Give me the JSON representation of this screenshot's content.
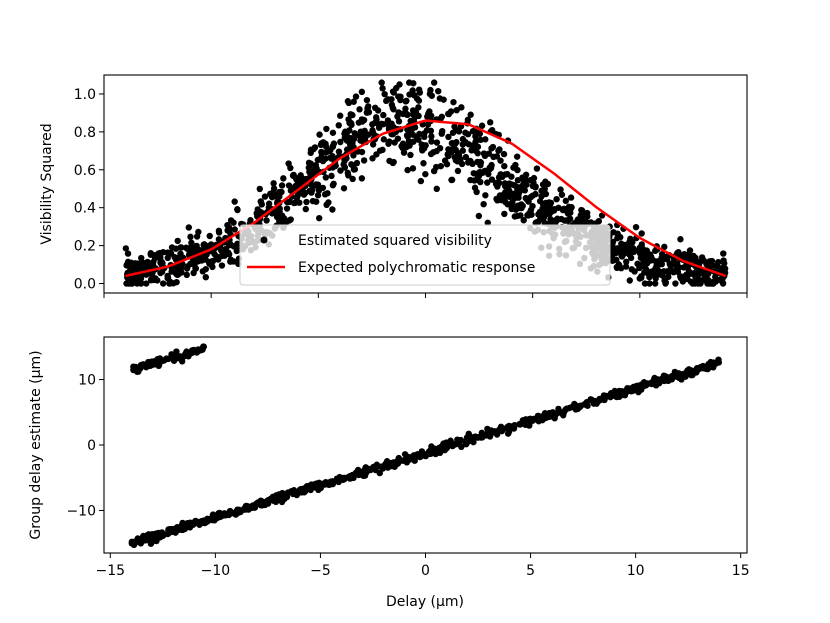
{
  "chart_data": [
    {
      "type": "scatter",
      "xlabel": "",
      "ylabel": "Visibility Squared",
      "xlim": [
        -15,
        15
      ],
      "ylim": [
        -0.05,
        1.1
      ],
      "xticks": [
        -15,
        -10,
        -5,
        0,
        5,
        10,
        15
      ],
      "yticks": [
        "0.0",
        "0.2",
        "0.4",
        "0.6",
        "0.8",
        "1.0"
      ],
      "x_tick_labels_shown": false,
      "grid": false,
      "legend": {
        "placement": "lower-center",
        "entries": [
          {
            "label": "Estimated squared visibility",
            "marker": "dot",
            "color": "#000000"
          },
          {
            "label": "Expected polychromatic response",
            "marker": "line",
            "color": "#ff0000"
          }
        ]
      },
      "series": [
        {
          "kind": "scatter",
          "color": "#000000",
          "x_range": [
            -14,
            14
          ],
          "count": 1400,
          "trend_x": [
            -14,
            -12,
            -10,
            -8,
            -6,
            -4,
            -3,
            -2,
            -1,
            0,
            1,
            2,
            3,
            4,
            6,
            8,
            10,
            12,
            14
          ],
          "trend_y": [
            0.05,
            0.09,
            0.16,
            0.28,
            0.48,
            0.67,
            0.76,
            0.83,
            0.84,
            0.83,
            0.77,
            0.7,
            0.6,
            0.52,
            0.35,
            0.22,
            0.13,
            0.08,
            0.05
          ],
          "spread": 0.09
        },
        {
          "kind": "line",
          "color": "#ff0000",
          "x": [
            -14,
            -12,
            -10,
            -8,
            -6,
            -4,
            -2,
            0,
            2,
            4,
            6,
            8,
            10,
            12,
            14
          ],
          "y": [
            0.04,
            0.09,
            0.18,
            0.32,
            0.49,
            0.66,
            0.79,
            0.86,
            0.84,
            0.74,
            0.58,
            0.4,
            0.24,
            0.12,
            0.04
          ]
        }
      ]
    },
    {
      "type": "scatter",
      "xlabel": "Delay (μm)",
      "ylabel": "Group delay estimate (μm)",
      "xlim": [
        -15.3,
        15.3
      ],
      "ylim": [
        -16.5,
        16.5
      ],
      "xticks": [
        "−15",
        "−10",
        "−5",
        "0",
        "5",
        "10",
        "15"
      ],
      "yticks": [
        "−10",
        "0",
        "10"
      ],
      "grid": false,
      "series": [
        {
          "kind": "scatter",
          "color": "#000000",
          "x": [
            -14,
            14
          ],
          "y": [
            -15,
            12.5
          ],
          "count": 700,
          "spread": 0.3
        },
        {
          "kind": "scatter",
          "color": "#000000",
          "x": [
            -14,
            -10.5
          ],
          "y": [
            11.5,
            14.8
          ],
          "count": 90,
          "spread": 0.3
        }
      ]
    }
  ]
}
